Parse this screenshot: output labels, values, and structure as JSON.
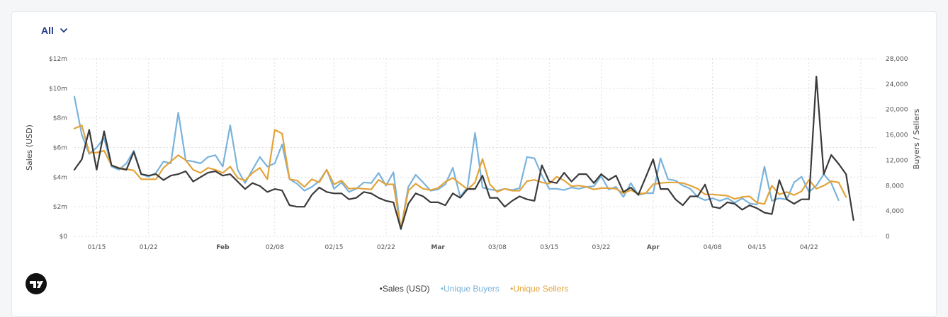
{
  "filter": {
    "selected": "All"
  },
  "icons": {
    "dropdown": "chevron-down-icon",
    "logo": "tradingview-logo-icon"
  },
  "legend": {
    "sales": "•Sales (USD)",
    "buyers": "•Unique Buyers",
    "sellers": "•Unique Sellers"
  },
  "chart_data": {
    "type": "line",
    "title": "",
    "ylabel_left": "Sales (USD)",
    "ylabel_right": "Buyers / Sellers",
    "ylim_left": [
      0,
      12
    ],
    "ylim_right": [
      0,
      28000
    ],
    "yticks_left": [
      0,
      2,
      4,
      6,
      8,
      10,
      12
    ],
    "ytick_labels_left": [
      "$0",
      "$2m",
      "$4m",
      "$6m",
      "$8m",
      "$10m",
      "$12m"
    ],
    "yticks_right": [
      0,
      4000,
      8000,
      12000,
      16000,
      20000,
      24000,
      28000
    ],
    "ytick_labels_right": [
      "0",
      "4,000",
      "8,000",
      "12,000",
      "16,000",
      "20,000",
      "24,000",
      "28,000"
    ],
    "x_range": [
      0,
      108
    ],
    "xticks": [
      3,
      10,
      20,
      27,
      35,
      42,
      49,
      57,
      64,
      71,
      78,
      86,
      92,
      99,
      106
    ],
    "xtick_labels": [
      "01/15",
      "01/22",
      "Feb",
      "02/08",
      "02/15",
      "02/22",
      "Mar",
      "03/08",
      "03/15",
      "03/22",
      "Apr",
      "04/08",
      "04/15",
      "04/22",
      ""
    ],
    "xtick_bold": [
      "Feb",
      "Mar",
      "Apr"
    ],
    "colors": {
      "sales": "#3a3a3a",
      "buyers": "#7ab3dc",
      "sellers": "#e3a33a"
    },
    "series": [
      {
        "name": "Sales (USD)",
        "axis": "left",
        "values": [
          4.5,
          5.2,
          7.2,
          4.5,
          7.1,
          4.8,
          4.6,
          4.5,
          5.7,
          4.2,
          4.1,
          4.2,
          3.8,
          4.1,
          4.2,
          4.4,
          3.7,
          4.0,
          4.3,
          4.4,
          4.1,
          4.2,
          3.7,
          3.2,
          3.6,
          3.4,
          3.0,
          3.2,
          3.1,
          2.1,
          2.0,
          2.0,
          2.8,
          3.3,
          3.0,
          2.9,
          2.9,
          2.5,
          2.6,
          3.0,
          2.9,
          2.6,
          2.4,
          2.3,
          0.5,
          2.2,
          2.9,
          2.7,
          2.3,
          2.3,
          2.1,
          2.9,
          2.6,
          3.2,
          3.2,
          4.1,
          2.6,
          2.6,
          2.0,
          2.4,
          2.7,
          2.5,
          2.4,
          4.8,
          3.7,
          3.6,
          4.3,
          3.7,
          4.2,
          4.2,
          3.6,
          4.2,
          3.8,
          4.1,
          3.0,
          3.3,
          2.8,
          4.0,
          5.2,
          3.2,
          3.2,
          2.5,
          2.1,
          2.7,
          2.7,
          3.5,
          2.0,
          1.9,
          2.3,
          2.2,
          1.8,
          2.1,
          1.9,
          1.6,
          1.5,
          3.8,
          2.5,
          2.2,
          2.5,
          2.5,
          10.8,
          4.2,
          5.5,
          4.9,
          4.2,
          1.1
        ]
      },
      {
        "name": "Unique Buyers",
        "axis": "right",
        "values": [
          22000,
          16000,
          13000,
          14000,
          15500,
          11000,
          10500,
          11500,
          13500,
          9800,
          9400,
          10000,
          11800,
          11500,
          19500,
          12000,
          11800,
          11500,
          12500,
          12800,
          11000,
          17500,
          10500,
          8400,
          10500,
          12500,
          11000,
          11500,
          14500,
          9000,
          8300,
          7200,
          7800,
          8700,
          10500,
          7500,
          8500,
          7000,
          7500,
          8500,
          8400,
          10000,
          8000,
          10100,
          1100,
          7800,
          9700,
          8500,
          7200,
          7400,
          8200,
          10800,
          6200,
          7800,
          16300,
          7700,
          7400,
          7200,
          7500,
          7300,
          7600,
          12500,
          12300,
          9600,
          7500,
          7500,
          7300,
          7700,
          7500,
          7800,
          7900,
          9500,
          7400,
          7800,
          6200,
          8400,
          6500,
          6800,
          6800,
          12300,
          9000,
          8800,
          8000,
          7500,
          6200,
          5700,
          6000,
          5600,
          6000,
          5300,
          6000,
          5200,
          5000,
          11000,
          5600,
          6000,
          5800,
          8500,
          9400,
          7000,
          8000,
          9800,
          8400,
          5700
        ]
      },
      {
        "name": "Unique Sellers",
        "axis": "right",
        "values": [
          17000,
          17500,
          13200,
          13200,
          13500,
          11200,
          10800,
          10600,
          10400,
          9000,
          9000,
          9000,
          10800,
          11800,
          12800,
          12000,
          10500,
          10000,
          10800,
          10500,
          10000,
          11000,
          9200,
          8800,
          10000,
          10800,
          9000,
          16800,
          16200,
          9000,
          8800,
          7800,
          9000,
          8500,
          10500,
          8200,
          8800,
          7500,
          7600,
          7500,
          7400,
          8900,
          8200,
          8200,
          1200,
          7200,
          8300,
          7500,
          7300,
          7600,
          8600,
          9200,
          8300,
          7400,
          8500,
          12200,
          8200,
          7000,
          7500,
          7200,
          7200,
          8700,
          8900,
          8500,
          8300,
          9400,
          8800,
          7900,
          8000,
          7800,
          7400,
          7600,
          7600,
          7500,
          6800,
          7300,
          6700,
          6800,
          8200,
          8400,
          8500,
          8500,
          8400,
          8000,
          7500,
          6600,
          6600,
          6500,
          6400,
          5900,
          6200,
          6300,
          5300,
          5100,
          8000,
          6600,
          7000,
          6500,
          7100,
          8900,
          7500,
          8000,
          8700,
          8500,
          6200
        ]
      }
    ]
  }
}
